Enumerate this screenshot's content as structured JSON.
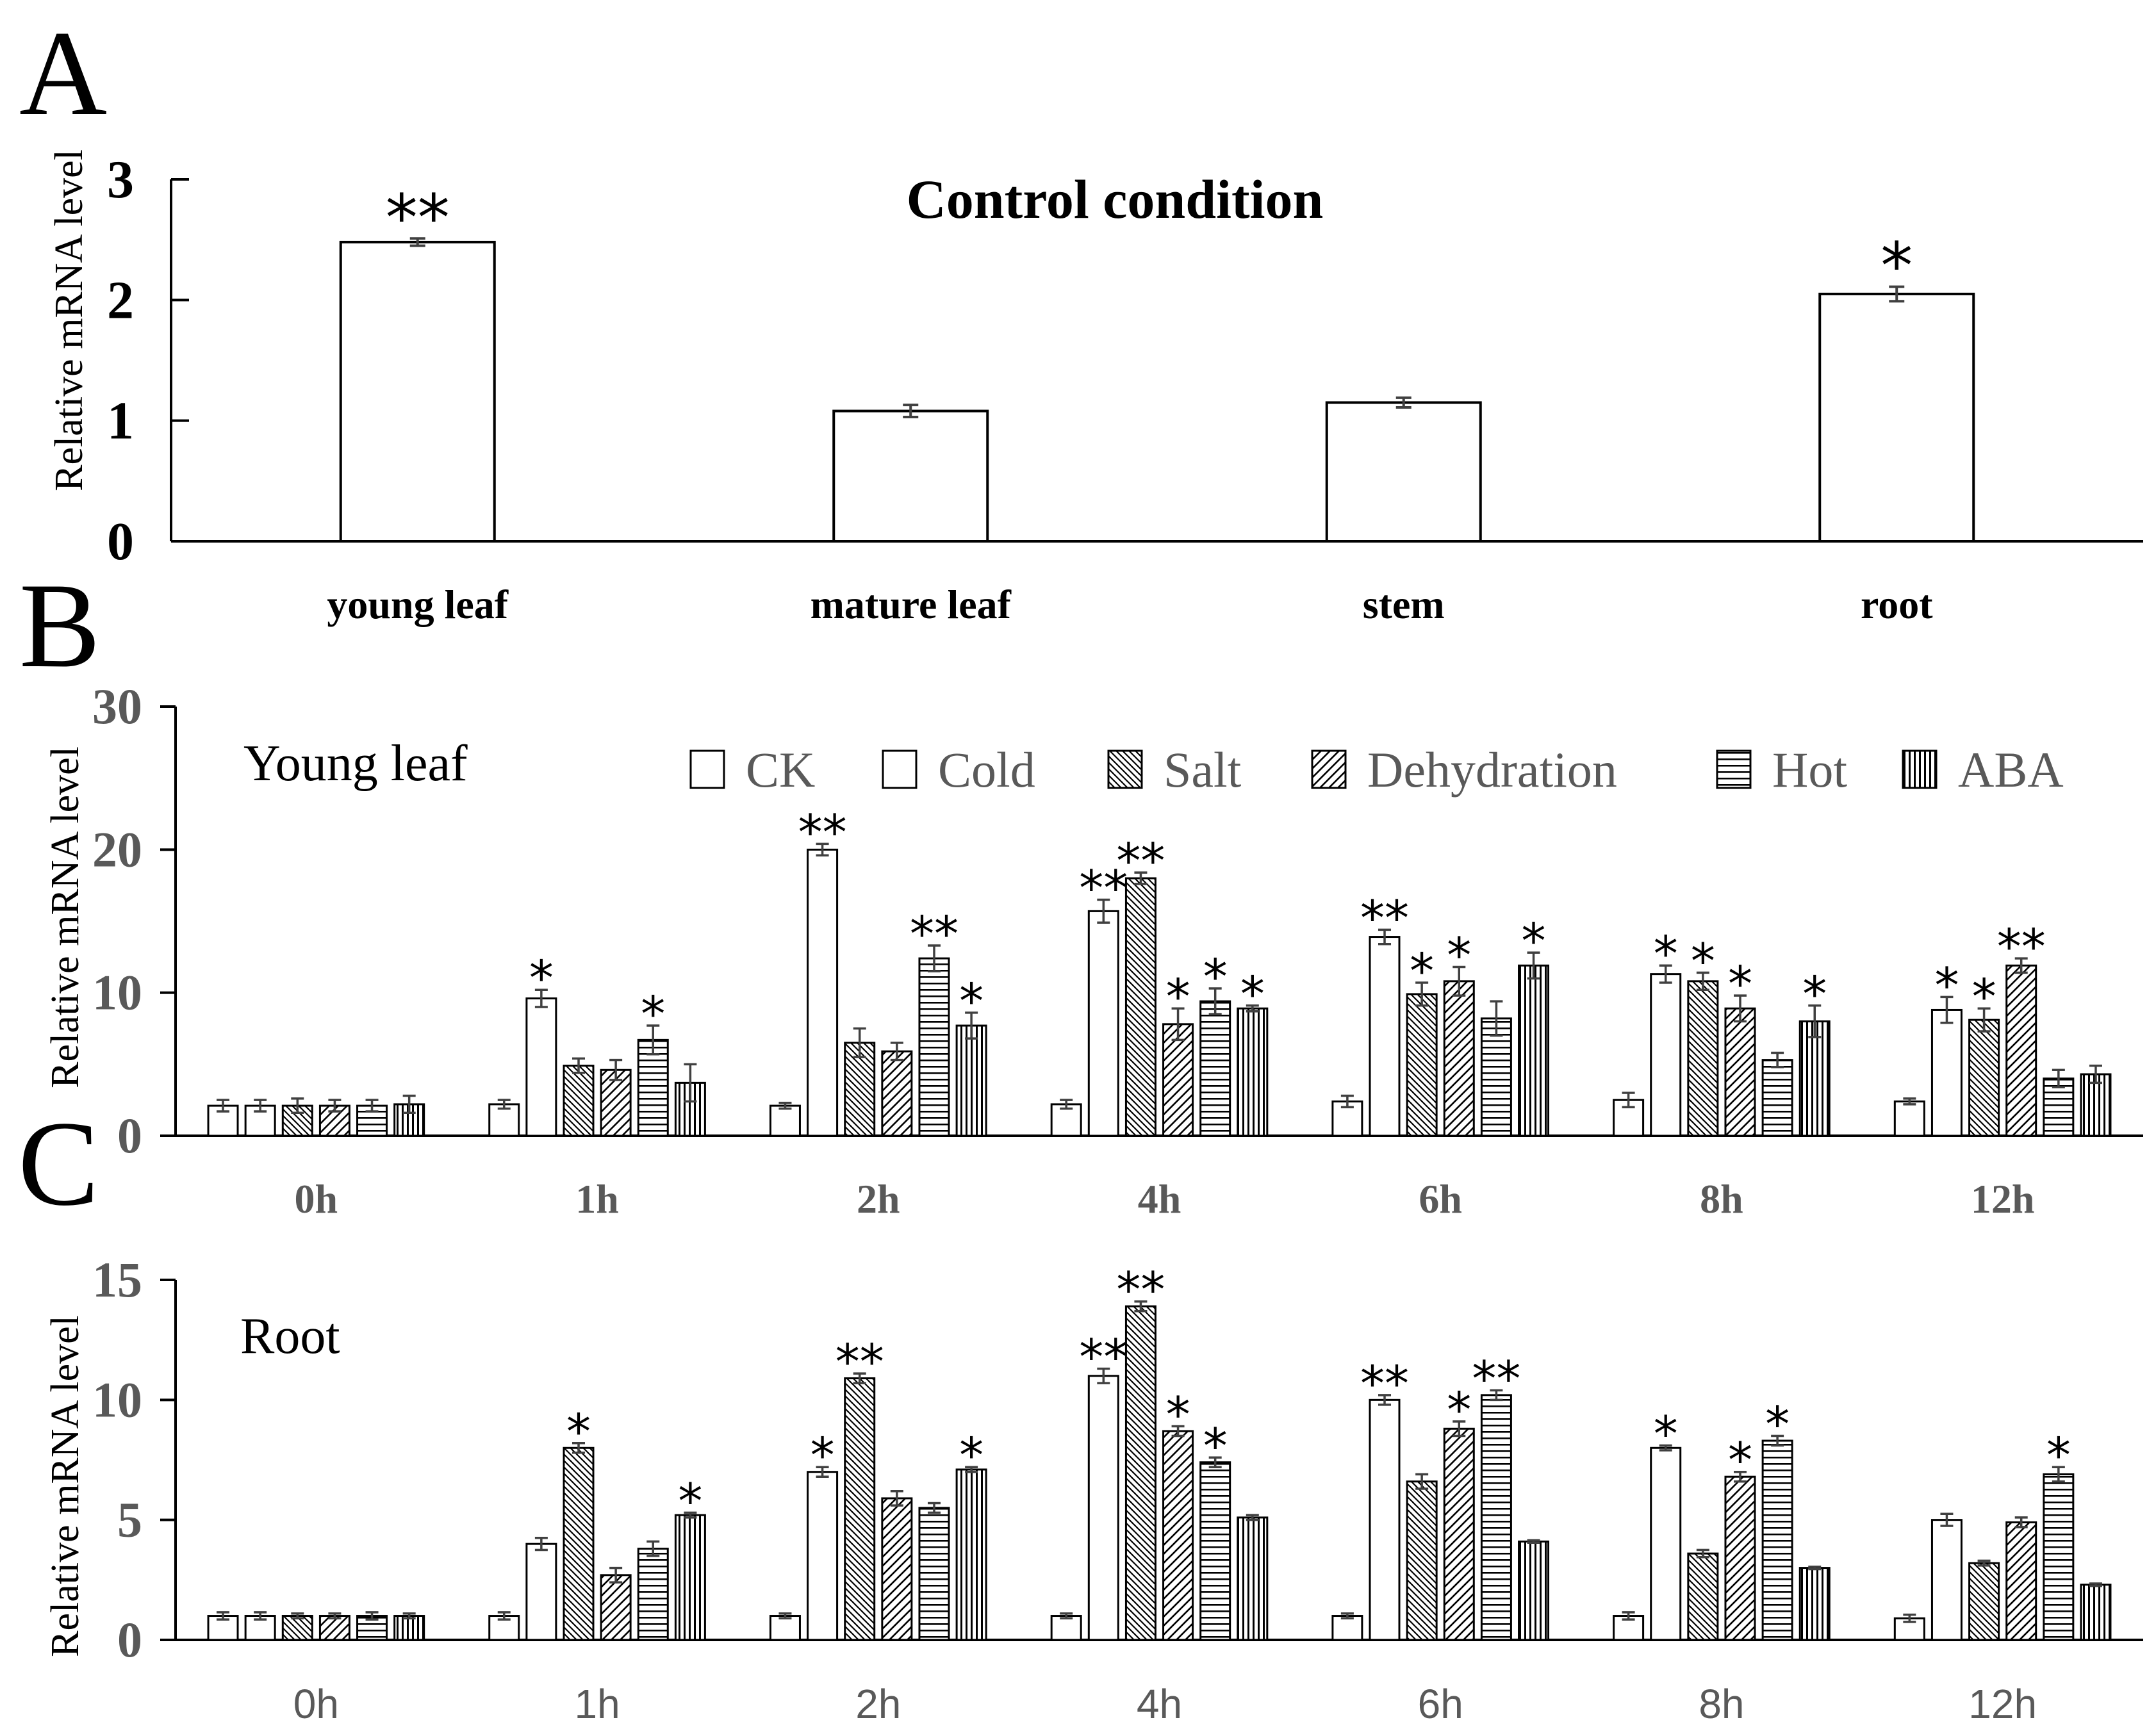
{
  "colors": {
    "axis": "#000000",
    "bar_stroke": "#000000",
    "error_bar": "#404040",
    "tick_gray": "#595959"
  },
  "chart_data": [
    {
      "panel": "A",
      "type": "bar",
      "title": "Control condition",
      "ylabel": "Relative mRNA level",
      "xlabel": "",
      "ylim": [
        0,
        3
      ],
      "yticks": [
        "0",
        "1",
        "2",
        "3"
      ],
      "categories": [
        "young leaf",
        "mature leaf",
        "stem",
        "root"
      ],
      "values": [
        2.48,
        1.08,
        1.15,
        2.05
      ],
      "errors": [
        0.03,
        0.05,
        0.04,
        0.06
      ],
      "significance": [
        "**",
        "",
        "",
        "*"
      ]
    },
    {
      "panel": "B",
      "type": "bar",
      "title": "Young leaf",
      "ylabel": "Relative mRNA level",
      "xlabel": "",
      "ylim": [
        0,
        30
      ],
      "yticks": [
        "0",
        "10",
        "20",
        "30"
      ],
      "categories": [
        "0h",
        "1h",
        "2h",
        "4h",
        "6h",
        "8h",
        "12h"
      ],
      "series": [
        {
          "name": "CK",
          "pattern": "white",
          "values": [
            2.1,
            2.2,
            2.1,
            2.2,
            2.4,
            2.5,
            2.4
          ],
          "errors": [
            0.4,
            0.3,
            0.2,
            0.3,
            0.4,
            0.5,
            0.2
          ],
          "significance": [
            "",
            "",
            "",
            "",
            "",
            "",
            ""
          ]
        },
        {
          "name": "Cold",
          "pattern": "white",
          "values": [
            2.1,
            9.6,
            20.0,
            15.7,
            13.9,
            11.3,
            8.8
          ],
          "errors": [
            0.4,
            0.6,
            0.4,
            0.8,
            0.5,
            0.6,
            0.9
          ],
          "significance": [
            "",
            "*",
            "**",
            "**",
            "**",
            "*",
            "*"
          ]
        },
        {
          "name": "Salt",
          "pattern": "hatch-back",
          "values": [
            2.1,
            4.9,
            6.5,
            18.0,
            9.9,
            10.8,
            8.1
          ],
          "errors": [
            0.5,
            0.5,
            1.0,
            0.4,
            0.8,
            0.6,
            0.8
          ],
          "significance": [
            "",
            "",
            "",
            "**",
            "*",
            "*",
            "*"
          ]
        },
        {
          "name": "Dehydration",
          "pattern": "hatch-fwd",
          "values": [
            2.1,
            4.6,
            5.9,
            7.8,
            10.8,
            8.9,
            11.9
          ],
          "errors": [
            0.4,
            0.7,
            0.6,
            1.1,
            1.0,
            0.9,
            0.5
          ],
          "significance": [
            "",
            "",
            "",
            "*",
            "*",
            "*",
            "**"
          ]
        },
        {
          "name": "Hot",
          "pattern": "horizontal",
          "values": [
            2.1,
            6.7,
            12.4,
            9.4,
            8.2,
            5.3,
            4.0
          ],
          "errors": [
            0.4,
            1.0,
            0.9,
            0.9,
            1.2,
            0.5,
            0.6
          ],
          "significance": [
            "",
            "*",
            "**",
            "*",
            "",
            "",
            ""
          ]
        },
        {
          "name": "ABA",
          "pattern": "vertical",
          "values": [
            2.2,
            3.7,
            7.7,
            8.9,
            11.9,
            8.0,
            4.3
          ],
          "errors": [
            0.6,
            1.3,
            0.9,
            0.2,
            0.9,
            1.1,
            0.6
          ],
          "significance": [
            "",
            "",
            "*",
            "*",
            "*",
            "*",
            ""
          ]
        }
      ]
    },
    {
      "panel": "C",
      "type": "bar",
      "title": "Root",
      "ylabel": "Relative mRNA level",
      "xlabel": "",
      "ylim": [
        0,
        15
      ],
      "yticks": [
        "0",
        "5",
        "10",
        "15"
      ],
      "categories": [
        "0h",
        "1h",
        "2h",
        "4h",
        "6h",
        "8h",
        "12h"
      ],
      "series": [
        {
          "name": "CK",
          "pattern": "white",
          "values": [
            1.0,
            1.0,
            1.0,
            1.0,
            1.0,
            1.0,
            0.9
          ],
          "errors": [
            0.15,
            0.15,
            0.1,
            0.1,
            0.1,
            0.15,
            0.15
          ],
          "significance": [
            "",
            "",
            "",
            "",
            "",
            "",
            ""
          ]
        },
        {
          "name": "Cold",
          "pattern": "white",
          "values": [
            1.0,
            4.0,
            7.0,
            11.0,
            10.0,
            8.0,
            5.0
          ],
          "errors": [
            0.15,
            0.25,
            0.2,
            0.3,
            0.2,
            0.1,
            0.25
          ],
          "significance": [
            "",
            "",
            "*",
            "**",
            "**",
            "*",
            ""
          ]
        },
        {
          "name": "Salt",
          "pattern": "hatch-back",
          "values": [
            1.0,
            8.0,
            10.9,
            13.9,
            6.6,
            3.6,
            3.2
          ],
          "errors": [
            0.1,
            0.2,
            0.2,
            0.2,
            0.3,
            0.15,
            0.1
          ],
          "significance": [
            "",
            "*",
            "**",
            "**",
            "",
            "",
            ""
          ]
        },
        {
          "name": "Dehydration",
          "pattern": "hatch-fwd",
          "values": [
            1.0,
            2.7,
            5.9,
            8.7,
            8.8,
            6.8,
            4.9
          ],
          "errors": [
            0.1,
            0.3,
            0.3,
            0.2,
            0.3,
            0.2,
            0.2
          ],
          "significance": [
            "",
            "",
            "",
            "*",
            "*",
            "*",
            ""
          ]
        },
        {
          "name": "Hot",
          "pattern": "horizontal",
          "values": [
            1.0,
            3.8,
            5.5,
            7.4,
            10.2,
            8.3,
            6.9
          ],
          "errors": [
            0.15,
            0.3,
            0.2,
            0.2,
            0.2,
            0.2,
            0.3
          ],
          "significance": [
            "",
            "",
            "",
            "*",
            "**",
            "*",
            "*"
          ]
        },
        {
          "name": "ABA",
          "pattern": "vertical",
          "values": [
            1.0,
            5.2,
            7.1,
            5.1,
            4.1,
            3.0,
            2.3
          ],
          "errors": [
            0.1,
            0.1,
            0.1,
            0.1,
            0.05,
            0.05,
            0.05
          ],
          "significance": [
            "",
            "*",
            "*",
            "",
            "",
            "",
            ""
          ]
        }
      ]
    }
  ],
  "panels": {
    "a": {
      "letter": "A"
    },
    "b": {
      "letter": "B"
    },
    "c": {
      "letter": "C"
    }
  }
}
